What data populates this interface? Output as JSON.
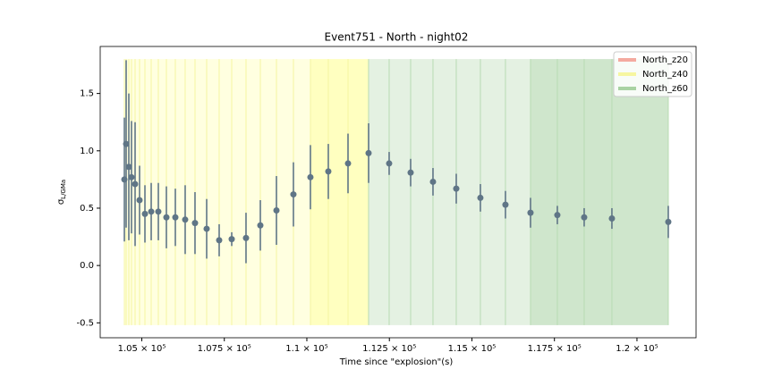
{
  "chart_data": {
    "type": "errorbar",
    "title": "Event751 - North - night02",
    "xlabel": "Time since \"explosion\"(s)",
    "ylabel": {
      "symbol": "σ",
      "sub": "L/GMa"
    },
    "xlim": [
      103740,
      121790
    ],
    "ylim": [
      -0.63,
      1.91
    ],
    "xticks": [
      {
        "value": 105000,
        "label": "1.05 × 10⁵"
      },
      {
        "value": 107500,
        "label": "1.075 × 10⁵"
      },
      {
        "value": 110000,
        "label": "1.1 × 10⁵"
      },
      {
        "value": 112500,
        "label": "1.125 × 10⁵"
      },
      {
        "value": 115000,
        "label": "1.15 × 10⁵"
      },
      {
        "value": 117500,
        "label": "1.175 × 10⁵"
      },
      {
        "value": 120000,
        "label": "1.2 × 10⁵"
      }
    ],
    "yticks": [
      -0.5,
      {
        "value": 0,
        "label": "0.0"
      },
      0.5,
      {
        "value": 1,
        "label": "1.0"
      },
      1.5
    ],
    "x": [
      104472,
      104526,
      104607,
      104688,
      104797,
      104932,
      105095,
      105285,
      105501,
      105745,
      106016,
      106314,
      106612,
      106965,
      107344,
      107724,
      108157,
      108591,
      109079,
      109593,
      110108,
      110650,
      111247,
      111870,
      112493,
      113144,
      113821,
      114526,
      115257,
      116016,
      116775,
      117588,
      118401,
      119241,
      120949
    ],
    "values": [
      0.75,
      1.06,
      0.86,
      0.77,
      0.71,
      0.57,
      0.45,
      0.47,
      0.47,
      0.42,
      0.42,
      0.4,
      0.37,
      0.32,
      0.22,
      0.23,
      0.24,
      0.35,
      0.48,
      0.62,
      0.77,
      0.82,
      0.89,
      0.98,
      0.89,
      0.81,
      0.73,
      0.67,
      0.59,
      0.53,
      0.46,
      0.44,
      0.42,
      0.41,
      0.38
    ],
    "errors": [
      0.54,
      0.73,
      0.64,
      0.49,
      0.54,
      0.3,
      0.25,
      0.25,
      0.25,
      0.27,
      0.25,
      0.3,
      0.27,
      0.26,
      0.14,
      0.06,
      0.22,
      0.22,
      0.3,
      0.28,
      0.28,
      0.24,
      0.26,
      0.26,
      0.1,
      0.12,
      0.12,
      0.13,
      0.12,
      0.12,
      0.13,
      0.08,
      0.08,
      0.09,
      0.14
    ],
    "color": "#5f7586",
    "legend_position": "upper right",
    "series": [
      {
        "name": "North_z20",
        "color": "#f4aaa0"
      },
      {
        "name": "North_z40",
        "color": "#f6f6a0"
      },
      {
        "name": "North_z60",
        "color": "#a9d3a3"
      }
    ],
    "bands": [
      {
        "x0": 104472,
        "x1": 110108,
        "y0": -0.52,
        "y1": 1.8,
        "color": "#ffffe0"
      },
      {
        "x0": 110108,
        "x1": 111870,
        "y0": -0.52,
        "y1": 1.8,
        "color": "#ffffc0"
      },
      {
        "x0": 111870,
        "x1": 116775,
        "y0": -0.52,
        "y1": 1.8,
        "color": "#e4f1e2"
      },
      {
        "x0": 116775,
        "x1": 120949,
        "y0": -0.52,
        "y1": 1.8,
        "color": "#cfe6cc"
      }
    ]
  }
}
